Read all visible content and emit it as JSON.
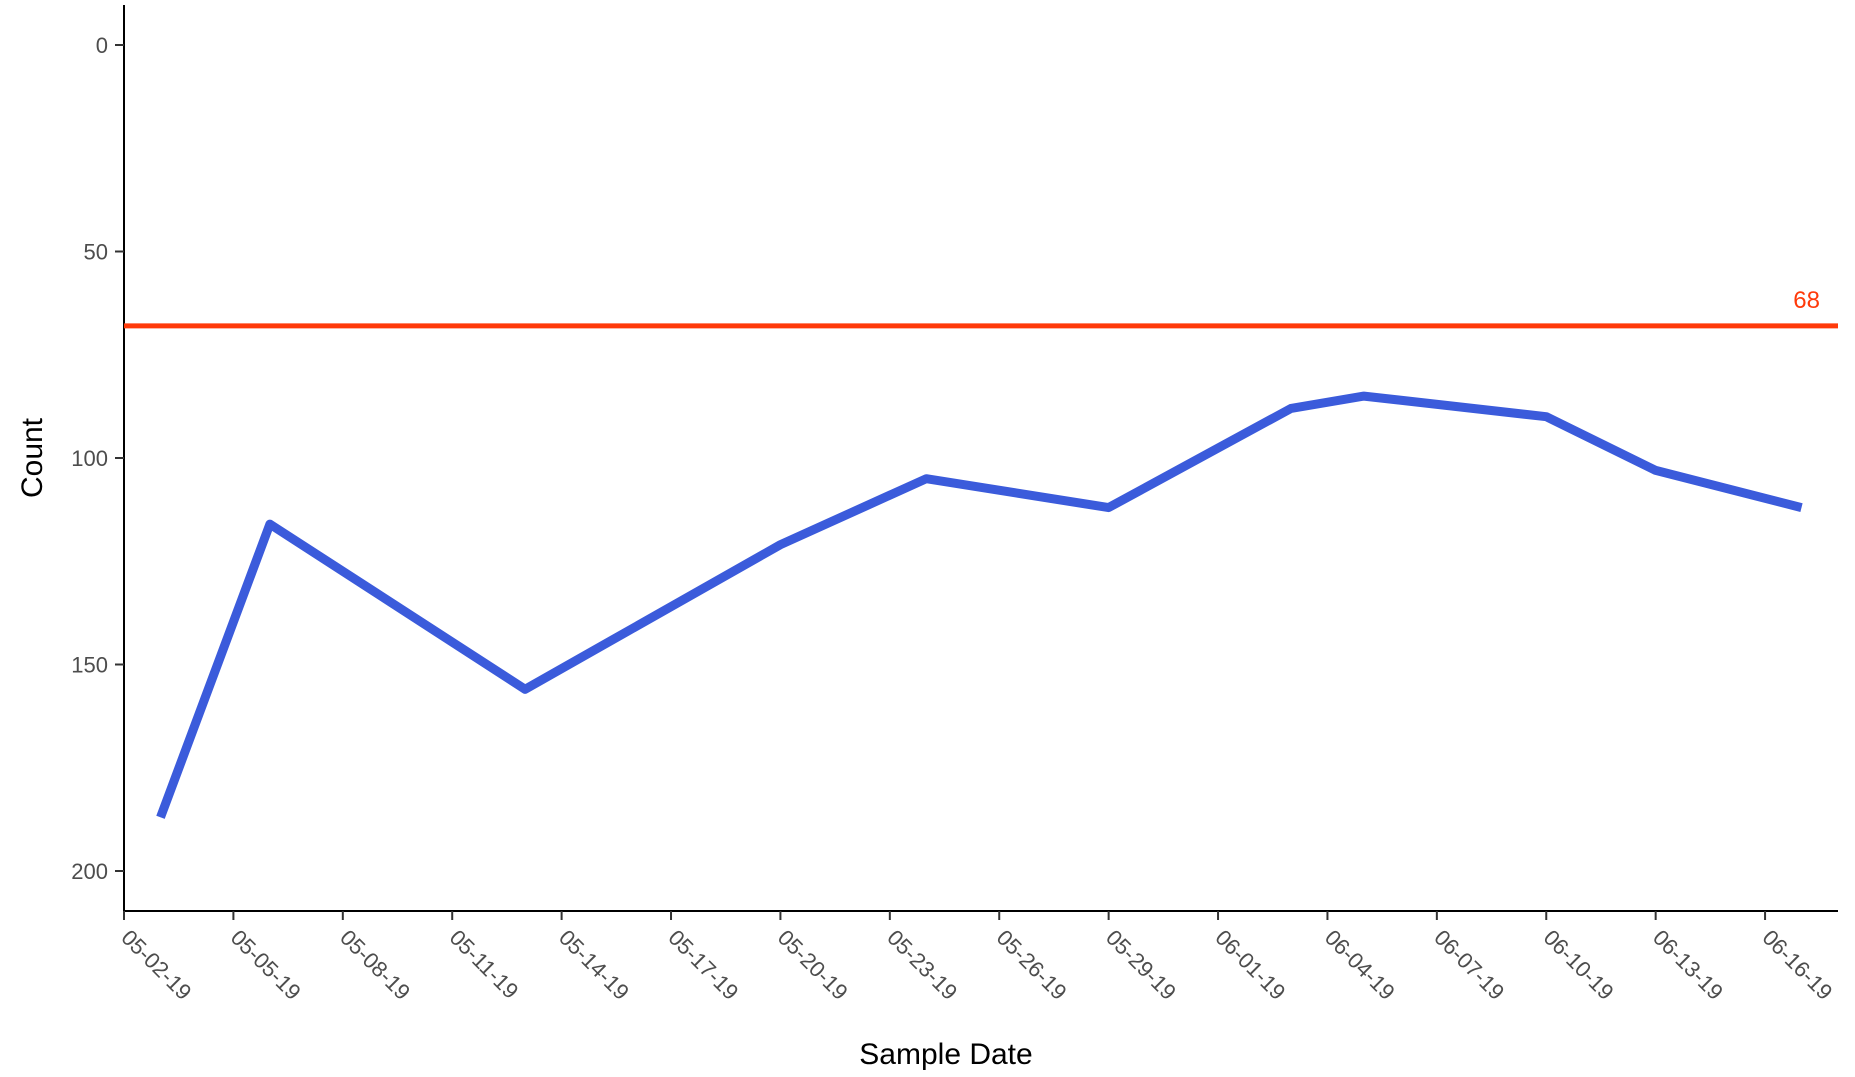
{
  "chart_data": {
    "type": "line",
    "title": "",
    "xlabel": "Sample Date",
    "ylabel": "Count",
    "y_axis_reversed": true,
    "ylim": [
      0,
      200
    ],
    "yticks": [
      0,
      50,
      100,
      150,
      200
    ],
    "xticks": [
      "05-02-19",
      "05-05-19",
      "05-08-19",
      "05-11-19",
      "05-14-19",
      "05-17-19",
      "05-20-19",
      "05-23-19",
      "05-26-19",
      "05-29-19",
      "06-01-19",
      "06-04-19",
      "06-07-19",
      "06-10-19",
      "06-13-19",
      "06-16-19"
    ],
    "xlim": [
      "2019-05-02",
      "2019-06-18"
    ],
    "grid": false,
    "series": [
      {
        "color": "#3b5bdb",
        "points": [
          {
            "x": "2019-05-03",
            "y": 187
          },
          {
            "x": "2019-05-06",
            "y": 116
          },
          {
            "x": "2019-05-13",
            "y": 156
          },
          {
            "x": "2019-05-20",
            "y": 121
          },
          {
            "x": "2019-05-24",
            "y": 105
          },
          {
            "x": "2019-05-29",
            "y": 112
          },
          {
            "x": "2019-06-03",
            "y": 88
          },
          {
            "x": "2019-06-05",
            "y": 85
          },
          {
            "x": "2019-06-10",
            "y": 90
          },
          {
            "x": "2019-06-13",
            "y": 103
          },
          {
            "x": "2019-06-17",
            "y": 112
          }
        ]
      }
    ],
    "reference_lines": [
      {
        "y": 68,
        "label": "68",
        "color": "#ff3a0a"
      }
    ]
  }
}
